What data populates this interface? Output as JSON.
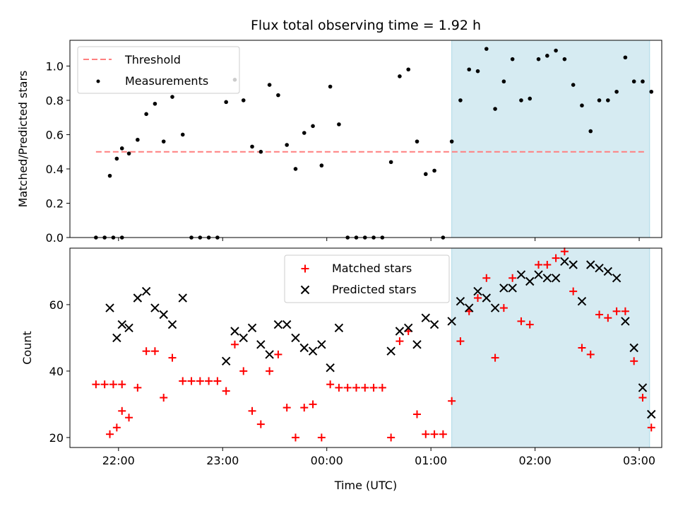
{
  "chart_data": {
    "title": "Flux total observing time = 1.92 h",
    "colors": {
      "threshold": "#ff7f7f",
      "measurement": "#000000",
      "matched": "#ff0000",
      "predicted": "#000000",
      "highlight": "#add8e6"
    },
    "highlight_span": {
      "start": "01:12",
      "end": "03:06"
    },
    "xlim": [
      "21:32",
      "03:13"
    ],
    "xticks": [
      "22:00",
      "23:00",
      "00:00",
      "01:00",
      "02:00",
      "03:00"
    ],
    "xlabel": "Time (UTC)",
    "top": {
      "type": "scatter",
      "ylabel": "Matched/Predicted stars",
      "ylim": [
        0,
        1.15
      ],
      "yticks": [
        "0.0",
        "0.2",
        "0.4",
        "0.6",
        "0.8",
        "1.0"
      ],
      "legend": {
        "placement": "upper-left",
        "entries": [
          "Threshold",
          "Measurements"
        ]
      },
      "threshold": {
        "name": "Threshold",
        "value": 0.5,
        "x_start": "21:47",
        "x_end": "03:04"
      },
      "measurements": {
        "name": "Measurements",
        "points": [
          [
            "21:47",
            0.0
          ],
          [
            "21:52",
            0.0
          ],
          [
            "21:57",
            0.0
          ],
          [
            "22:02",
            0.0
          ],
          [
            "21:55",
            0.36
          ],
          [
            "21:59",
            0.46
          ],
          [
            "22:02",
            0.52
          ],
          [
            "22:06",
            0.49
          ],
          [
            "22:11",
            0.57
          ],
          [
            "22:16",
            0.72
          ],
          [
            "22:21",
            0.78
          ],
          [
            "22:26",
            0.56
          ],
          [
            "22:31",
            0.82
          ],
          [
            "22:37",
            0.6
          ],
          [
            "22:42",
            0.0
          ],
          [
            "22:47",
            0.0
          ],
          [
            "22:52",
            0.0
          ],
          [
            "22:57",
            0.0
          ],
          [
            "23:02",
            0.79
          ],
          [
            "23:07",
            0.92
          ],
          [
            "23:12",
            0.8
          ],
          [
            "23:17",
            0.53
          ],
          [
            "23:22",
            0.5
          ],
          [
            "23:27",
            0.89
          ],
          [
            "23:32",
            0.83
          ],
          [
            "23:37",
            0.54
          ],
          [
            "23:42",
            0.4
          ],
          [
            "23:47",
            0.61
          ],
          [
            "23:52",
            0.65
          ],
          [
            "23:57",
            0.42
          ],
          [
            "00:02",
            0.88
          ],
          [
            "00:07",
            0.66
          ],
          [
            "00:12",
            0.0
          ],
          [
            "00:17",
            0.0
          ],
          [
            "00:22",
            0.0
          ],
          [
            "00:27",
            0.0
          ],
          [
            "00:32",
            0.0
          ],
          [
            "00:37",
            0.44
          ],
          [
            "00:42",
            0.94
          ],
          [
            "00:47",
            0.98
          ],
          [
            "00:52",
            0.56
          ],
          [
            "00:57",
            0.37
          ],
          [
            "01:02",
            0.39
          ],
          [
            "01:07",
            0.0
          ],
          [
            "01:12",
            0.56
          ],
          [
            "01:17",
            0.8
          ],
          [
            "01:22",
            0.98
          ],
          [
            "01:27",
            0.97
          ],
          [
            "01:32",
            1.1
          ],
          [
            "01:37",
            0.75
          ],
          [
            "01:42",
            0.91
          ],
          [
            "01:47",
            1.04
          ],
          [
            "01:52",
            0.8
          ],
          [
            "01:57",
            0.81
          ],
          [
            "02:02",
            1.04
          ],
          [
            "02:07",
            1.06
          ],
          [
            "02:12",
            1.09
          ],
          [
            "02:17",
            1.04
          ],
          [
            "02:22",
            0.89
          ],
          [
            "02:27",
            0.77
          ],
          [
            "02:32",
            0.62
          ],
          [
            "02:37",
            0.8
          ],
          [
            "02:42",
            0.8
          ],
          [
            "02:47",
            0.85
          ],
          [
            "02:52",
            1.05
          ],
          [
            "02:57",
            0.91
          ],
          [
            "03:02",
            0.91
          ],
          [
            "03:07",
            0.85
          ]
        ]
      }
    },
    "bottom": {
      "type": "scatter",
      "ylabel": "Count",
      "ylim": [
        17,
        77
      ],
      "yticks": [
        "20",
        "40",
        "60"
      ],
      "legend": {
        "placement": "upper-center",
        "entries": [
          "Matched stars",
          "Predicted stars"
        ]
      },
      "matched": {
        "name": "Matched stars",
        "points": [
          [
            "21:47",
            36
          ],
          [
            "21:52",
            36
          ],
          [
            "21:57",
            36
          ],
          [
            "22:02",
            36
          ],
          [
            "21:55",
            21
          ],
          [
            "21:59",
            23
          ],
          [
            "22:02",
            28
          ],
          [
            "22:06",
            26
          ],
          [
            "22:11",
            35
          ],
          [
            "22:16",
            46
          ],
          [
            "22:21",
            46
          ],
          [
            "22:26",
            32
          ],
          [
            "22:31",
            44
          ],
          [
            "22:37",
            37
          ],
          [
            "22:42",
            37
          ],
          [
            "22:47",
            37
          ],
          [
            "22:52",
            37
          ],
          [
            "22:57",
            37
          ],
          [
            "23:02",
            34
          ],
          [
            "23:07",
            48
          ],
          [
            "23:12",
            40
          ],
          [
            "23:17",
            28
          ],
          [
            "23:22",
            24
          ],
          [
            "23:27",
            40
          ],
          [
            "23:32",
            45
          ],
          [
            "23:37",
            29
          ],
          [
            "23:42",
            20
          ],
          [
            "23:47",
            29
          ],
          [
            "23:52",
            30
          ],
          [
            "23:57",
            20
          ],
          [
            "00:02",
            36
          ],
          [
            "00:07",
            35
          ],
          [
            "00:12",
            35
          ],
          [
            "00:17",
            35
          ],
          [
            "00:22",
            35
          ],
          [
            "00:27",
            35
          ],
          [
            "00:32",
            35
          ],
          [
            "00:37",
            20
          ],
          [
            "00:42",
            49
          ],
          [
            "00:47",
            52
          ],
          [
            "00:52",
            27
          ],
          [
            "00:57",
            21
          ],
          [
            "01:02",
            21
          ],
          [
            "01:07",
            21
          ],
          [
            "01:12",
            31
          ],
          [
            "01:17",
            49
          ],
          [
            "01:22",
            58
          ],
          [
            "01:27",
            62
          ],
          [
            "01:32",
            68
          ],
          [
            "01:37",
            44
          ],
          [
            "01:42",
            59
          ],
          [
            "01:47",
            68
          ],
          [
            "01:52",
            55
          ],
          [
            "01:57",
            54
          ],
          [
            "02:02",
            72
          ],
          [
            "02:07",
            72
          ],
          [
            "02:12",
            74
          ],
          [
            "02:17",
            76
          ],
          [
            "02:22",
            64
          ],
          [
            "02:27",
            47
          ],
          [
            "02:32",
            45
          ],
          [
            "02:37",
            57
          ],
          [
            "02:42",
            56
          ],
          [
            "02:47",
            58
          ],
          [
            "02:52",
            58
          ],
          [
            "02:57",
            43
          ],
          [
            "03:02",
            32
          ],
          [
            "03:07",
            23
          ]
        ]
      },
      "predicted": {
        "name": "Predicted stars",
        "points": [
          [
            "21:55",
            59
          ],
          [
            "21:59",
            50
          ],
          [
            "22:02",
            54
          ],
          [
            "22:06",
            53
          ],
          [
            "22:11",
            62
          ],
          [
            "22:16",
            64
          ],
          [
            "22:21",
            59
          ],
          [
            "22:26",
            57
          ],
          [
            "22:31",
            54
          ],
          [
            "22:37",
            62
          ],
          [
            "23:02",
            43
          ],
          [
            "23:07",
            52
          ],
          [
            "23:12",
            50
          ],
          [
            "23:17",
            53
          ],
          [
            "23:22",
            48
          ],
          [
            "23:27",
            45
          ],
          [
            "23:32",
            54
          ],
          [
            "23:37",
            54
          ],
          [
            "23:42",
            50
          ],
          [
            "23:47",
            47
          ],
          [
            "23:52",
            46
          ],
          [
            "23:57",
            48
          ],
          [
            "00:02",
            41
          ],
          [
            "00:07",
            53
          ],
          [
            "00:37",
            46
          ],
          [
            "00:42",
            52
          ],
          [
            "00:47",
            53
          ],
          [
            "00:52",
            48
          ],
          [
            "00:57",
            56
          ],
          [
            "01:02",
            54
          ],
          [
            "01:12",
            55
          ],
          [
            "01:17",
            61
          ],
          [
            "01:22",
            59
          ],
          [
            "01:27",
            64
          ],
          [
            "01:32",
            62
          ],
          [
            "01:37",
            59
          ],
          [
            "01:42",
            65
          ],
          [
            "01:47",
            65
          ],
          [
            "01:52",
            69
          ],
          [
            "01:57",
            67
          ],
          [
            "02:02",
            69
          ],
          [
            "02:07",
            68
          ],
          [
            "02:12",
            68
          ],
          [
            "02:17",
            73
          ],
          [
            "02:22",
            72
          ],
          [
            "02:27",
            61
          ],
          [
            "02:32",
            72
          ],
          [
            "02:37",
            71
          ],
          [
            "02:42",
            70
          ],
          [
            "02:47",
            68
          ],
          [
            "02:52",
            55
          ],
          [
            "02:57",
            47
          ],
          [
            "03:02",
            35
          ],
          [
            "03:07",
            27
          ]
        ]
      }
    }
  }
}
